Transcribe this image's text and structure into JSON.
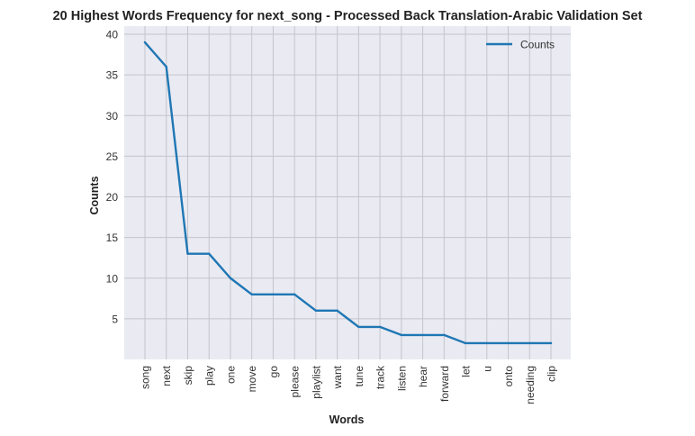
{
  "chart_data": {
    "type": "line",
    "title": "20 Highest Words Frequency for next_song - Processed Back Translation-Arabic Validation Set",
    "xlabel": "Words",
    "ylabel": "Counts",
    "categories": [
      "song",
      "next",
      "skip",
      "play",
      "one",
      "move",
      "go",
      "please",
      "playlist",
      "want",
      "tune",
      "track",
      "listen",
      "hear",
      "forward",
      "let",
      "u",
      "onto",
      "needing",
      "clip"
    ],
    "series": [
      {
        "name": "Counts",
        "values": [
          39,
          36,
          13,
          13,
          10,
          8,
          8,
          8,
          6,
          6,
          4,
          4,
          3,
          3,
          3,
          2,
          2,
          2,
          2,
          2
        ]
      }
    ],
    "ylim": [
      0,
      41
    ],
    "yticks": [
      5,
      10,
      15,
      20,
      25,
      30,
      35,
      40
    ],
    "grid": true,
    "legend_position": "top-right",
    "colors": {
      "line": "#1f77b4",
      "plot_bg": "#eaeaf2",
      "grid": "#c4c4cc"
    }
  }
}
